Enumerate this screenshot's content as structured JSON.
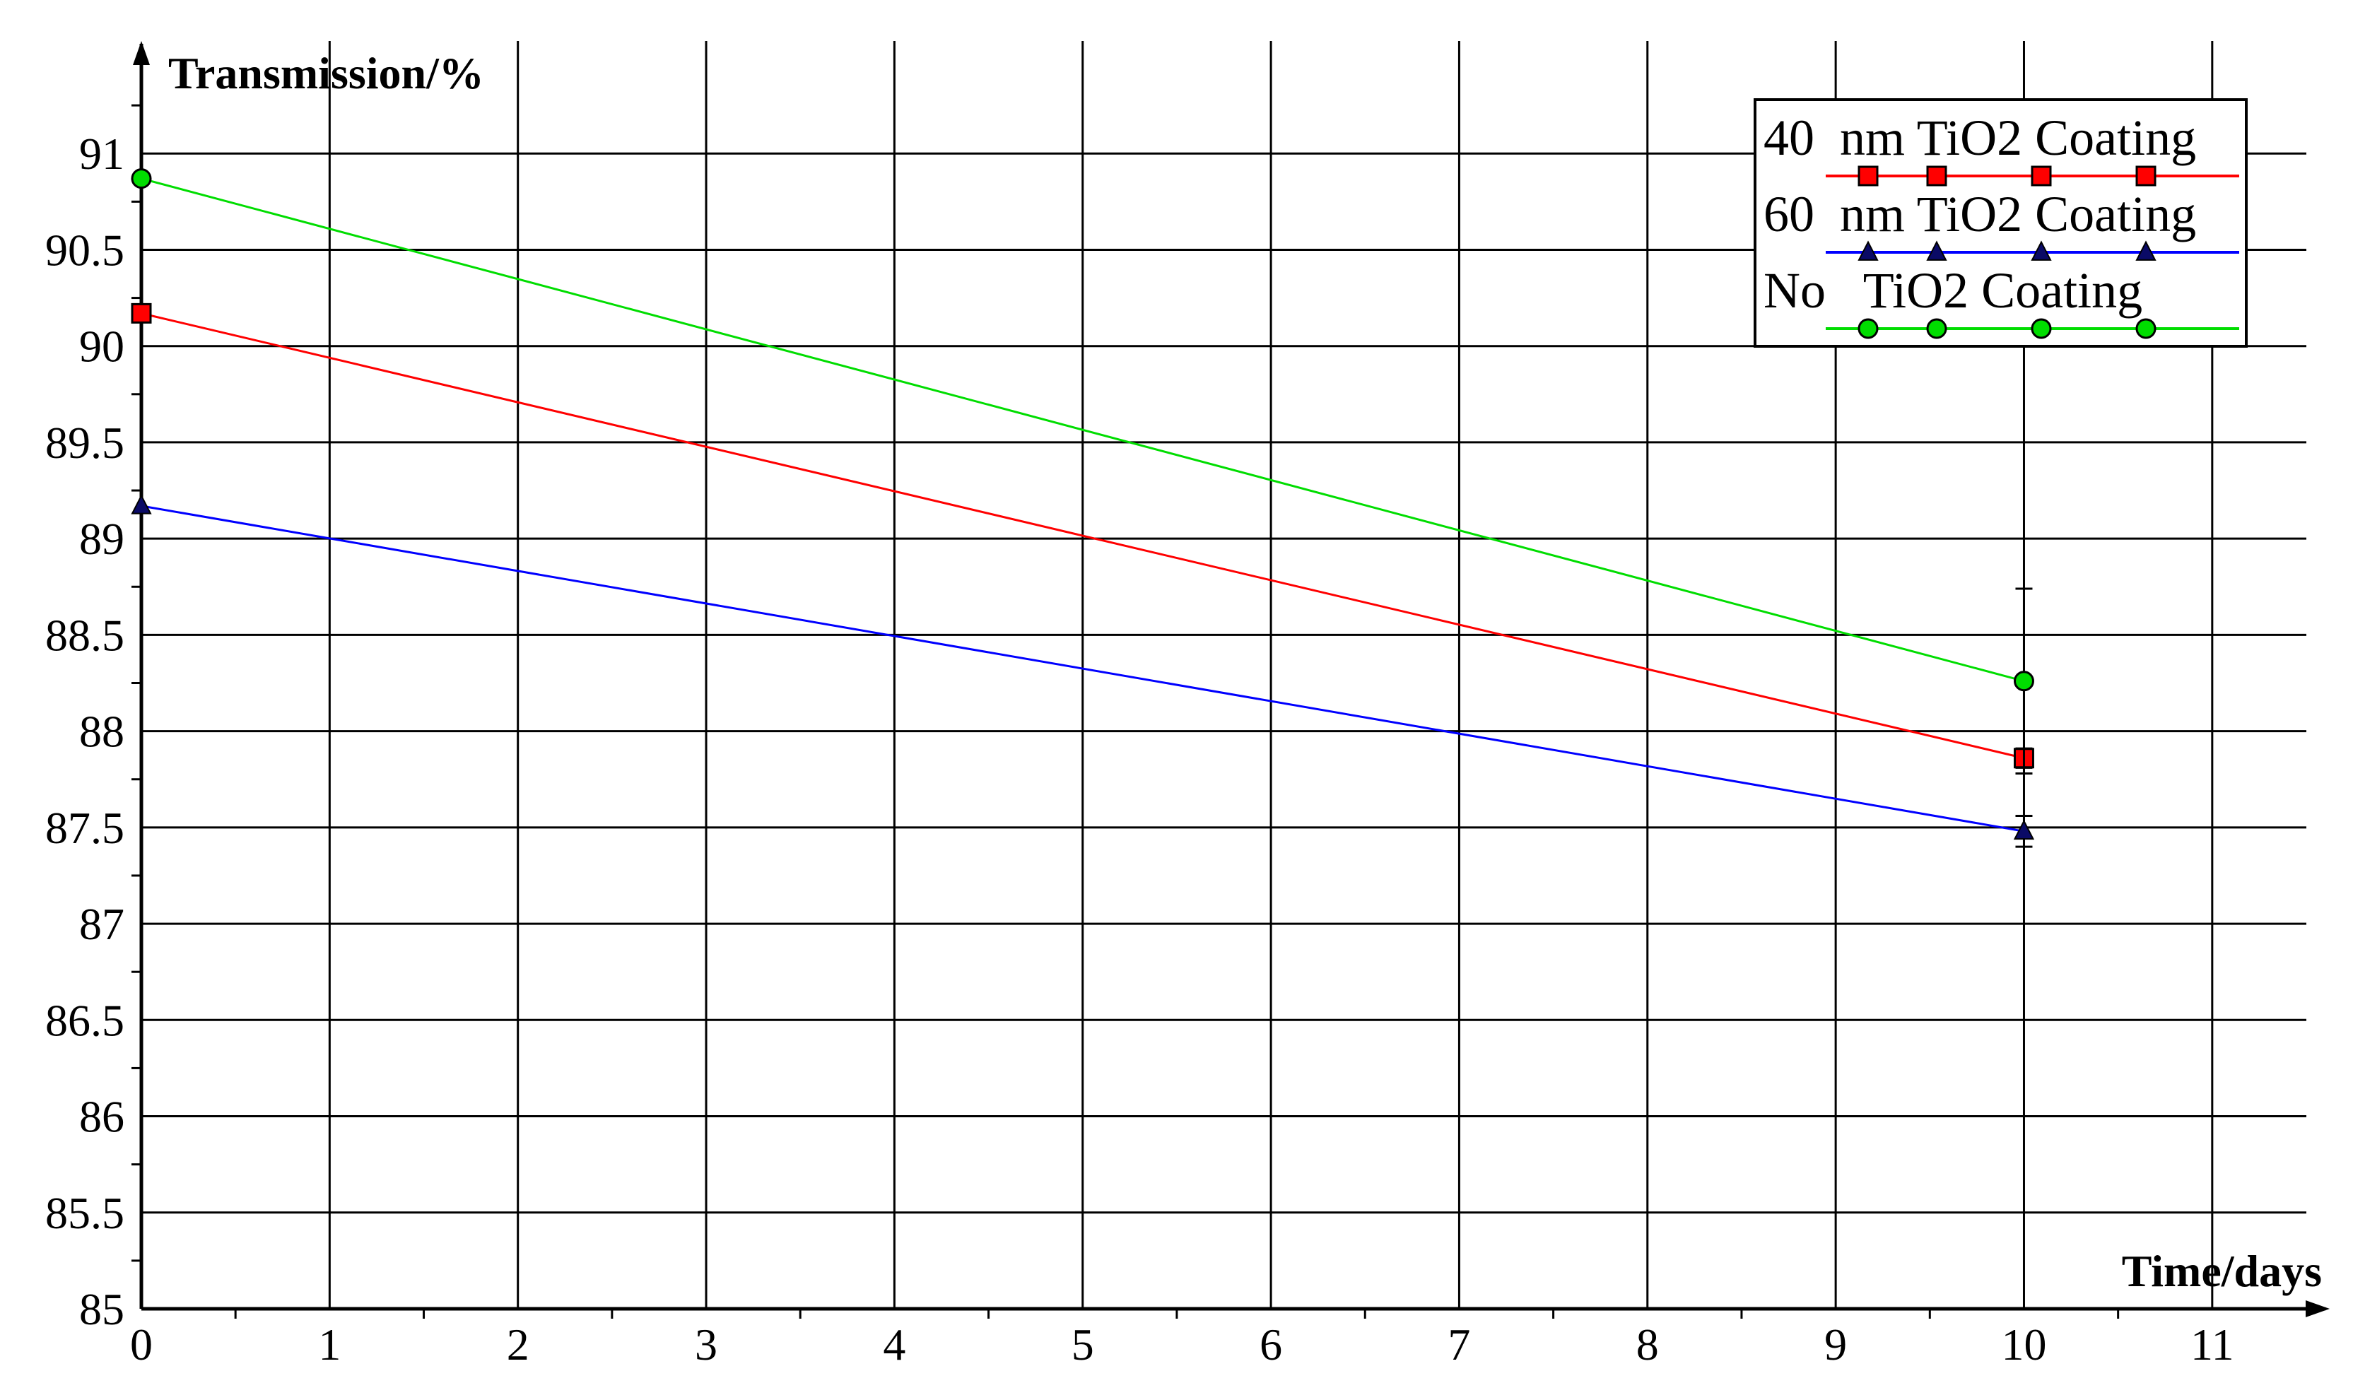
{
  "chart_data": {
    "type": "line",
    "title": "",
    "xlabel": "Time/days",
    "ylabel": "Transmission/%",
    "xlim": [
      0,
      11.5
    ],
    "ylim": [
      85,
      91.5
    ],
    "xticks": [
      "0",
      "1",
      "2",
      "3",
      "4",
      "5",
      "6",
      "7",
      "8",
      "9",
      "10",
      "11"
    ],
    "yticks": [
      "85",
      "85.5",
      "86",
      "86.5",
      "87",
      "87.5",
      "88",
      "88.5",
      "89",
      "89.5",
      "90",
      "90.5",
      "91"
    ],
    "grid": true,
    "legend_position": "top-right",
    "series": [
      {
        "name": "40  nm TiO2 Coating",
        "color": "#ff0000",
        "marker": "square",
        "points": [
          {
            "x": 0,
            "y": 90.17,
            "err": 0
          },
          {
            "x": 10,
            "y": 87.86,
            "err": 0.05
          }
        ]
      },
      {
        "name": "60  nm TiO2 Coating",
        "color": "#0000ff",
        "marker": "triangle",
        "points": [
          {
            "x": 0,
            "y": 89.17,
            "err": 0
          },
          {
            "x": 10,
            "y": 87.48,
            "err": 0.08
          }
        ]
      },
      {
        "name": "No   TiO2 Coating",
        "color": "#00dd00",
        "marker": "circle",
        "points": [
          {
            "x": 0,
            "y": 90.87,
            "err": 0
          },
          {
            "x": 10,
            "y": 88.26,
            "err": 0.48
          }
        ]
      }
    ]
  }
}
